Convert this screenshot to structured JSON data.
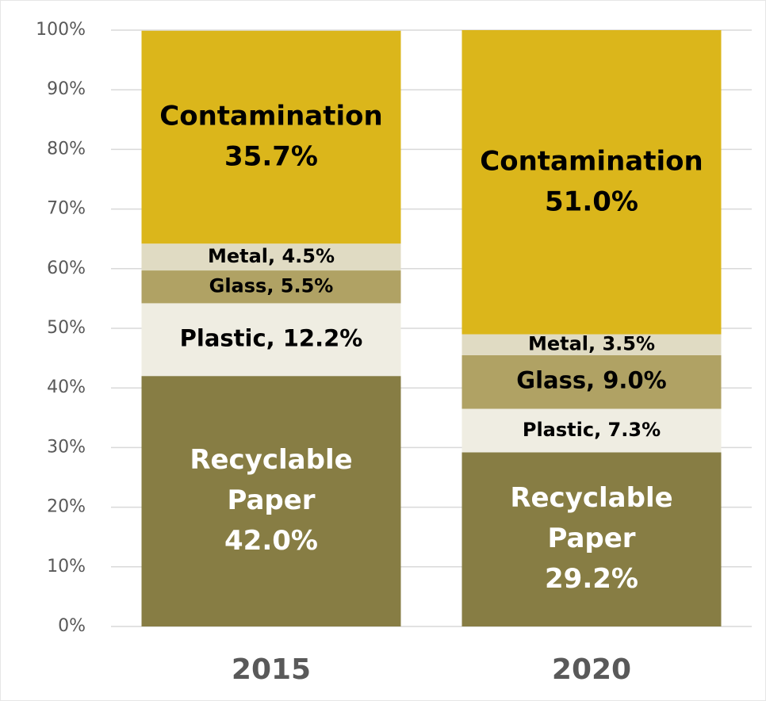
{
  "chart_data": {
    "type": "stacked_bar",
    "categories": [
      "2015",
      "2020"
    ],
    "series": [
      {
        "name": "Recyclable Paper",
        "color": "#877d44",
        "label_color": "#ffffff",
        "values": [
          42.0,
          29.2
        ],
        "value_labels": [
          "Recyclable Paper 42.0%",
          "Recyclable Paper 29.2%"
        ]
      },
      {
        "name": "Plastic",
        "color": "#efede2",
        "label_color": "#000000",
        "values": [
          12.2,
          7.3
        ],
        "value_labels": [
          "Plastic, 12.2%",
          "Plastic, 7.3%"
        ]
      },
      {
        "name": "Glass",
        "color": "#b0a264",
        "label_color": "#000000",
        "values": [
          5.5,
          9.0
        ],
        "value_labels": [
          "Glass, 5.5%",
          "Glass, 9.0%"
        ]
      },
      {
        "name": "Metal",
        "color": "#e0dbc3",
        "label_color": "#000000",
        "values": [
          4.5,
          3.5
        ],
        "value_labels": [
          "Metal, 4.5%",
          "Metal, 3.5%"
        ]
      },
      {
        "name": "Contamination",
        "color": "#dbb61b",
        "label_color": "#000000",
        "values": [
          35.7,
          51.0
        ],
        "value_labels": [
          "Contamination 35.7%",
          "Contamination 51.0%"
        ]
      }
    ],
    "ylim": [
      0,
      100
    ],
    "yticks": [
      {
        "value": 0,
        "label": "0%"
      },
      {
        "value": 10,
        "label": "10%"
      },
      {
        "value": 20,
        "label": "20%"
      },
      {
        "value": 30,
        "label": "30%"
      },
      {
        "value": 40,
        "label": "40%"
      },
      {
        "value": 50,
        "label": "50%"
      },
      {
        "value": 60,
        "label": "60%"
      },
      {
        "value": 70,
        "label": "70%"
      },
      {
        "value": 80,
        "label": "80%"
      },
      {
        "value": 90,
        "label": "90%"
      },
      {
        "value": 100,
        "label": "100%"
      }
    ],
    "grid": true
  }
}
